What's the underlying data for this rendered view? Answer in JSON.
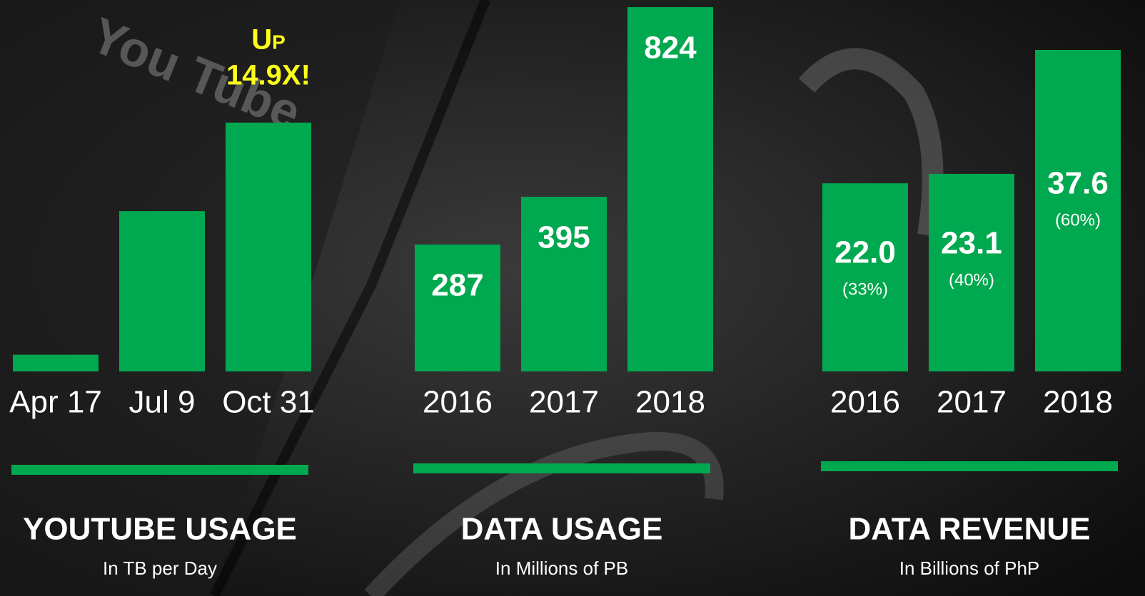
{
  "chart_data": [
    {
      "type": "bar",
      "title": "YOUTUBE USAGE",
      "subtitle": "In TB per Day",
      "categories": [
        "Apr 17",
        "Jul 9",
        "Oct 31"
      ],
      "values": [
        1,
        9.6,
        14.9
      ],
      "color": "#00a84f",
      "annotation": [
        "Up",
        "14.9X!"
      ]
    },
    {
      "type": "bar",
      "title": "DATA USAGE",
      "subtitle": "In Millions of PB",
      "categories": [
        "2016",
        "2017",
        "2018"
      ],
      "values": [
        287,
        395,
        824
      ],
      "color": "#00a84f"
    },
    {
      "type": "bar",
      "title": "DATA REVENUE",
      "subtitle": "In Billions of PhP",
      "categories": [
        "2016",
        "2017",
        "2018"
      ],
      "values": [
        22.0,
        23.1,
        37.6
      ],
      "value_labels": [
        "22.0",
        "23.1",
        "37.6"
      ],
      "shares": [
        33,
        40,
        60
      ],
      "share_labels": [
        "(33%)",
        "(40%)",
        "(60%)"
      ],
      "color": "#00a84f"
    }
  ]
}
